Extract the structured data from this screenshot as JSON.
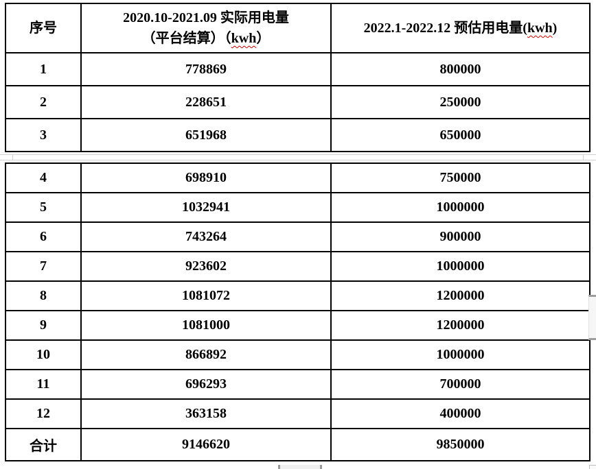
{
  "colors": {
    "table_border": "#000000",
    "page_break_line": "#d4d4d4",
    "spellcheck_underline": "#cc0000",
    "scrollbar_fill": "#f6f6f6",
    "scrollbar_cap": "#9e9e9e"
  },
  "table": {
    "headers": {
      "seq": "序号",
      "actual_line1": "2020.10-2021.09 实际用电量",
      "actual_line2_pre": "（平台结算）（",
      "actual_kwh": "kwh",
      "actual_line2_suf": "）",
      "est_pre": "2022.1-2022.12 预估用电量(",
      "est_kwh": "kwh",
      "est_suf": ")"
    },
    "rows": [
      {
        "seq": "1",
        "actual": "778869",
        "estimated": "800000"
      },
      {
        "seq": "2",
        "actual": "228651",
        "estimated": "250000"
      },
      {
        "seq": "3",
        "actual": "651968",
        "estimated": "650000"
      },
      {
        "seq": "4",
        "actual": "698910",
        "estimated": "750000"
      },
      {
        "seq": "5",
        "actual": "1032941",
        "estimated": "1000000"
      },
      {
        "seq": "6",
        "actual": "743264",
        "estimated": "900000"
      },
      {
        "seq": "7",
        "actual": "923602",
        "estimated": "1000000"
      },
      {
        "seq": "8",
        "actual": "1081072",
        "estimated": "1200000"
      },
      {
        "seq": "9",
        "actual": "1081000",
        "estimated": "1200000"
      },
      {
        "seq": "10",
        "actual": "866892",
        "estimated": "1000000"
      },
      {
        "seq": "11",
        "actual": "696293",
        "estimated": "700000"
      },
      {
        "seq": "12",
        "actual": "363158",
        "estimated": "400000"
      }
    ],
    "total": {
      "seq": "合计",
      "actual": "9146620",
      "estimated": "9850000"
    }
  }
}
